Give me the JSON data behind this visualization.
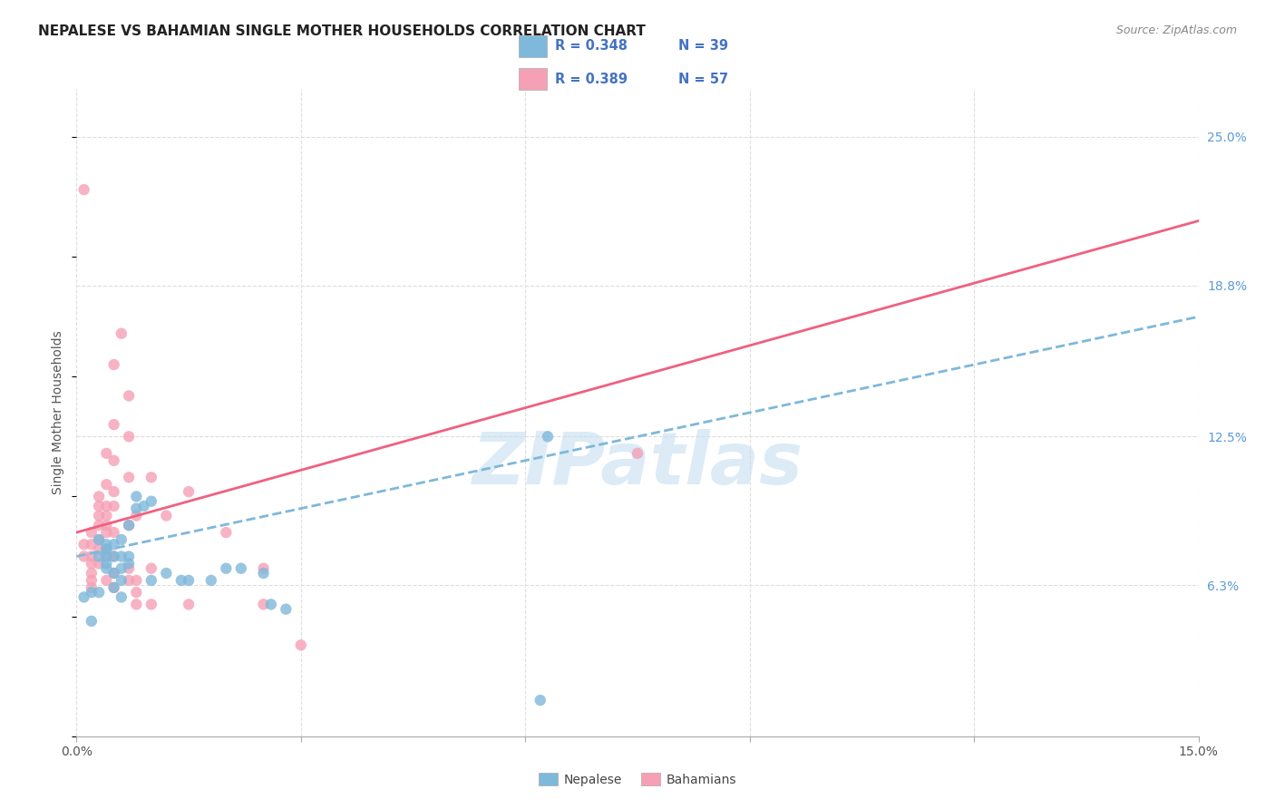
{
  "title": "NEPALESE VS BAHAMIAN SINGLE MOTHER HOUSEHOLDS CORRELATION CHART",
  "source": "Source: ZipAtlas.com",
  "ylabel": "Single Mother Households",
  "y_tick_labels_right": [
    "6.3%",
    "12.5%",
    "18.8%",
    "25.0%"
  ],
  "y_tick_values_right": [
    0.063,
    0.125,
    0.188,
    0.25
  ],
  "xlim": [
    0.0,
    0.15
  ],
  "ylim": [
    0.0,
    0.27
  ],
  "legend_r1": "R = 0.348",
  "legend_n1": "N = 39",
  "legend_r2": "R = 0.389",
  "legend_n2": "N = 57",
  "color_nepalese": "#7EB8DA",
  "color_bahamian": "#F5A0B5",
  "color_line_nepalese": "#7EB8DA",
  "color_line_bahamian": "#F06080",
  "watermark": "ZIPatlas",
  "watermark_color": "#C5DFF0",
  "background_color": "#FFFFFF",
  "grid_color": "#DDDDDD",
  "nepalese_points": [
    [
      0.001,
      0.058
    ],
    [
      0.002,
      0.048
    ],
    [
      0.002,
      0.06
    ],
    [
      0.003,
      0.075
    ],
    [
      0.003,
      0.082
    ],
    [
      0.003,
      0.06
    ],
    [
      0.004,
      0.072
    ],
    [
      0.004,
      0.08
    ],
    [
      0.004,
      0.078
    ],
    [
      0.004,
      0.07
    ],
    [
      0.004,
      0.075
    ],
    [
      0.005,
      0.08
    ],
    [
      0.005,
      0.075
    ],
    [
      0.005,
      0.068
    ],
    [
      0.005,
      0.062
    ],
    [
      0.006,
      0.082
    ],
    [
      0.006,
      0.075
    ],
    [
      0.006,
      0.07
    ],
    [
      0.006,
      0.065
    ],
    [
      0.006,
      0.058
    ],
    [
      0.007,
      0.088
    ],
    [
      0.007,
      0.075
    ],
    [
      0.007,
      0.072
    ],
    [
      0.008,
      0.1
    ],
    [
      0.008,
      0.095
    ],
    [
      0.009,
      0.096
    ],
    [
      0.01,
      0.098
    ],
    [
      0.01,
      0.065
    ],
    [
      0.012,
      0.068
    ],
    [
      0.014,
      0.065
    ],
    [
      0.015,
      0.065
    ],
    [
      0.018,
      0.065
    ],
    [
      0.02,
      0.07
    ],
    [
      0.022,
      0.07
    ],
    [
      0.025,
      0.068
    ],
    [
      0.026,
      0.055
    ],
    [
      0.028,
      0.053
    ],
    [
      0.063,
      0.125
    ],
    [
      0.062,
      0.015
    ]
  ],
  "bahamian_points": [
    [
      0.001,
      0.228
    ],
    [
      0.001,
      0.08
    ],
    [
      0.001,
      0.075
    ],
    [
      0.002,
      0.085
    ],
    [
      0.002,
      0.08
    ],
    [
      0.002,
      0.075
    ],
    [
      0.002,
      0.072
    ],
    [
      0.002,
      0.068
    ],
    [
      0.002,
      0.065
    ],
    [
      0.002,
      0.062
    ],
    [
      0.003,
      0.1
    ],
    [
      0.003,
      0.096
    ],
    [
      0.003,
      0.092
    ],
    [
      0.003,
      0.088
    ],
    [
      0.003,
      0.082
    ],
    [
      0.003,
      0.078
    ],
    [
      0.003,
      0.072
    ],
    [
      0.004,
      0.118
    ],
    [
      0.004,
      0.105
    ],
    [
      0.004,
      0.096
    ],
    [
      0.004,
      0.092
    ],
    [
      0.004,
      0.088
    ],
    [
      0.004,
      0.085
    ],
    [
      0.004,
      0.078
    ],
    [
      0.004,
      0.075
    ],
    [
      0.004,
      0.065
    ],
    [
      0.005,
      0.155
    ],
    [
      0.005,
      0.13
    ],
    [
      0.005,
      0.115
    ],
    [
      0.005,
      0.102
    ],
    [
      0.005,
      0.096
    ],
    [
      0.005,
      0.085
    ],
    [
      0.005,
      0.075
    ],
    [
      0.005,
      0.068
    ],
    [
      0.005,
      0.062
    ],
    [
      0.006,
      0.168
    ],
    [
      0.007,
      0.142
    ],
    [
      0.007,
      0.125
    ],
    [
      0.007,
      0.108
    ],
    [
      0.007,
      0.088
    ],
    [
      0.007,
      0.07
    ],
    [
      0.007,
      0.065
    ],
    [
      0.008,
      0.092
    ],
    [
      0.008,
      0.065
    ],
    [
      0.008,
      0.06
    ],
    [
      0.008,
      0.055
    ],
    [
      0.01,
      0.108
    ],
    [
      0.01,
      0.07
    ],
    [
      0.01,
      0.055
    ],
    [
      0.012,
      0.092
    ],
    [
      0.015,
      0.102
    ],
    [
      0.015,
      0.055
    ],
    [
      0.02,
      0.085
    ],
    [
      0.025,
      0.07
    ],
    [
      0.025,
      0.055
    ],
    [
      0.03,
      0.038
    ],
    [
      0.075,
      0.118
    ]
  ],
  "line_nepalese_x0": 0.0,
  "line_nepalese_y0": 0.075,
  "line_nepalese_x1": 0.15,
  "line_nepalese_y1": 0.175,
  "line_bahamian_x0": 0.0,
  "line_bahamian_y0": 0.085,
  "line_bahamian_x1": 0.15,
  "line_bahamian_y1": 0.215
}
